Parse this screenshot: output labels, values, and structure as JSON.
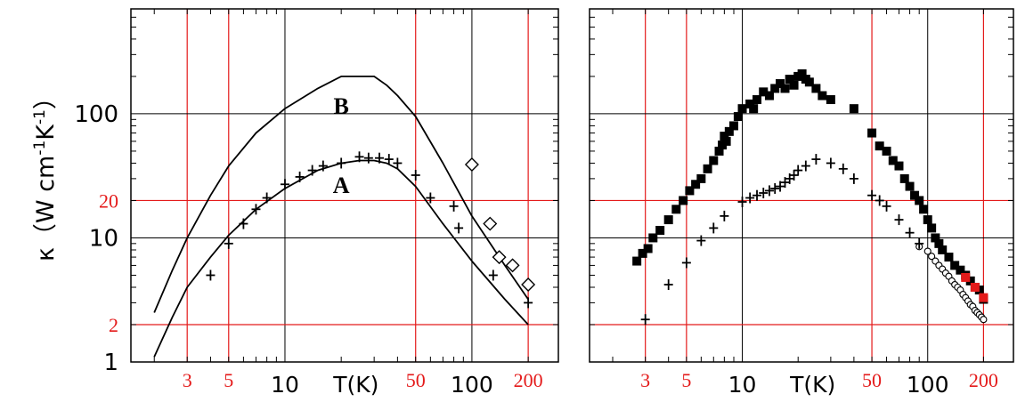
{
  "ylabel": {
    "symbol": "κ（",
    "unit_main": "W cm",
    "exp1": "-1",
    "unit_k": "K",
    "exp2": "-1",
    "close": "）"
  },
  "colors": {
    "red_grid": "#e41a1a",
    "black_grid": "#000000",
    "red_marker": "#e41a1a"
  },
  "chart_data": [
    {
      "type": "line",
      "xlabel": "T(K)",
      "ylabel": "κ（W cm-1K-1）",
      "x_scale": "log",
      "y_scale": "log",
      "xlim": [
        1.5,
        290
      ],
      "ylim": [
        1,
        700
      ],
      "x_ticks_black": [
        "10",
        "100"
      ],
      "x_ticks_red": [
        "3",
        "5",
        "50",
        "200"
      ],
      "y_ticks_black": [
        "1",
        "10",
        "100"
      ],
      "y_ticks_red": [
        "2",
        "20"
      ],
      "curve_labels": [
        "B",
        "A"
      ],
      "series": [
        {
          "style": "line",
          "label": "B",
          "x": [
            2,
            2.5,
            3,
            4,
            5,
            7,
            10,
            15,
            20,
            25,
            30,
            35,
            40,
            50,
            70,
            100,
            150,
            200
          ],
          "y": [
            2.5,
            5.5,
            10,
            22,
            38,
            70,
            110,
            160,
            200,
            200,
            200,
            170,
            140,
            95,
            40,
            15,
            6,
            3.2
          ]
        },
        {
          "style": "line",
          "label": "A",
          "x": [
            2,
            2.5,
            3,
            4,
            5,
            7,
            10,
            15,
            20,
            25,
            30,
            35,
            40,
            50,
            70,
            100,
            150,
            200
          ],
          "y": [
            1.1,
            2.3,
            4,
            7,
            10.5,
            17,
            25,
            35,
            40,
            42,
            42,
            40,
            36,
            26,
            13,
            6.5,
            3.2,
            2
          ]
        },
        {
          "style": "cross",
          "x": [
            4,
            5,
            6,
            7,
            8,
            10,
            12,
            14,
            16,
            20,
            25,
            28,
            32,
            36,
            40,
            50,
            60,
            80,
            85,
            130,
            200
          ],
          "y": [
            5,
            9,
            13,
            17,
            21,
            27,
            31,
            35,
            38,
            40,
            45,
            44,
            44,
            43,
            40,
            32,
            21,
            18,
            12,
            5,
            3
          ]
        },
        {
          "style": "diamond",
          "x": [
            100,
            125,
            140,
            165,
            200
          ],
          "y": [
            39,
            13,
            7,
            6,
            4.2
          ]
        }
      ]
    },
    {
      "type": "scatter",
      "xlabel": "T(K)",
      "x_scale": "log",
      "y_scale": "log",
      "xlim": [
        1.5,
        290
      ],
      "ylim": [
        1,
        700
      ],
      "x_ticks_black": [
        "10",
        "100"
      ],
      "x_ticks_red": [
        "3",
        "5",
        "50",
        "200"
      ],
      "series": [
        {
          "style": "filled-square",
          "x": [
            2.7,
            2.9,
            3.1,
            3.3,
            3.6,
            4.0,
            4.4,
            4.8,
            5.2,
            5.6,
            6.0,
            6.5,
            7.0,
            7.5,
            7.8,
            8.0,
            8.2,
            8.5,
            9.0,
            9.5,
            10,
            11,
            11.5,
            12,
            13,
            14,
            15,
            16,
            17,
            18,
            19,
            20,
            21,
            22,
            23,
            25,
            27,
            30,
            40,
            50,
            55,
            60,
            65,
            70,
            75,
            80,
            85,
            90,
            95,
            100,
            105,
            110,
            115,
            120,
            130,
            140,
            150,
            160,
            170,
            180,
            190,
            200
          ],
          "y": [
            6.5,
            7.5,
            8.2,
            10,
            11.5,
            14,
            17,
            20,
            24,
            27,
            30,
            36,
            42,
            50,
            56,
            66,
            60,
            72,
            80,
            95,
            110,
            120,
            110,
            130,
            150,
            140,
            160,
            175,
            160,
            190,
            170,
            200,
            210,
            190,
            180,
            160,
            140,
            130,
            110,
            70,
            55,
            50,
            42,
            38,
            30,
            26,
            22,
            20,
            17,
            14,
            12,
            10,
            9,
            8,
            7,
            6,
            5.5,
            5,
            4.5,
            4,
            3.8,
            3.2
          ]
        },
        {
          "style": "red-square",
          "x": [
            160,
            180,
            200
          ],
          "y": [
            4.8,
            4.0,
            3.3
          ]
        },
        {
          "style": "open-circle",
          "x": [
            90,
            100,
            105,
            110,
            115,
            120,
            125,
            130,
            135,
            140,
            145,
            150,
            155,
            160,
            165,
            170,
            175,
            180,
            185,
            190,
            195,
            200
          ],
          "y": [
            8.5,
            7.8,
            7.1,
            6.5,
            6.0,
            5.6,
            5.2,
            4.9,
            4.5,
            4.2,
            4.0,
            3.8,
            3.5,
            3.3,
            3.1,
            2.9,
            2.8,
            2.6,
            2.5,
            2.4,
            2.3,
            2.2
          ]
        },
        {
          "style": "cross",
          "x": [
            3,
            4,
            5,
            6,
            7,
            8,
            10,
            11,
            12,
            13,
            14,
            15,
            16,
            17,
            18,
            19,
            20,
            22,
            25,
            30,
            35,
            40,
            50,
            55,
            60,
            70,
            80,
            90
          ],
          "y": [
            2.2,
            4.2,
            6.3,
            9.5,
            12,
            15,
            19.5,
            21,
            22,
            23,
            24,
            25,
            26,
            28,
            30,
            32,
            35,
            38,
            43,
            40,
            36,
            30,
            22,
            20,
            18,
            14,
            11,
            9
          ]
        }
      ]
    }
  ]
}
